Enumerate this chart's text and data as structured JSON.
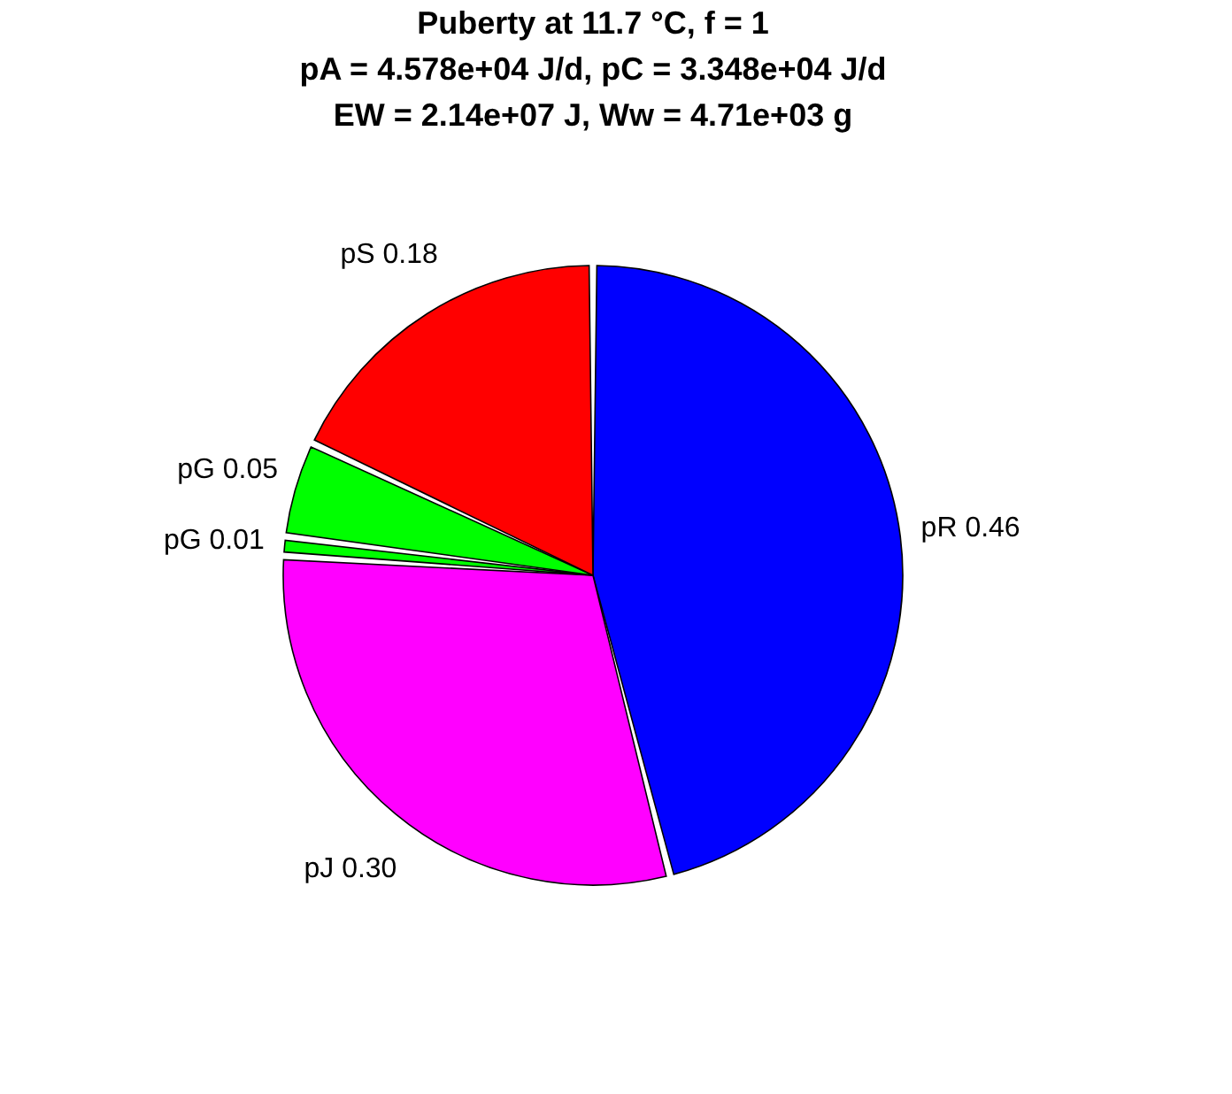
{
  "chart_data": {
    "type": "pie",
    "title": [
      "Puberty at 11.7 °C, f = 1",
      "pA = 4.578e+04 J/d,  pC = 3.348e+04 J/d",
      "EW = 2.14e+07 J, Ww = 4.71e+03 g"
    ],
    "categories": [
      "pR 0.46",
      "pJ 0.30",
      "pG 0.01",
      "pG 0.05",
      "pS 0.18"
    ],
    "values": [
      0.46,
      0.3,
      0.01,
      0.05,
      0.18
    ],
    "colors": [
      "#0000ff",
      "#ff00ff",
      "#00ff00",
      "#00ff00",
      "#ff0000"
    ]
  }
}
